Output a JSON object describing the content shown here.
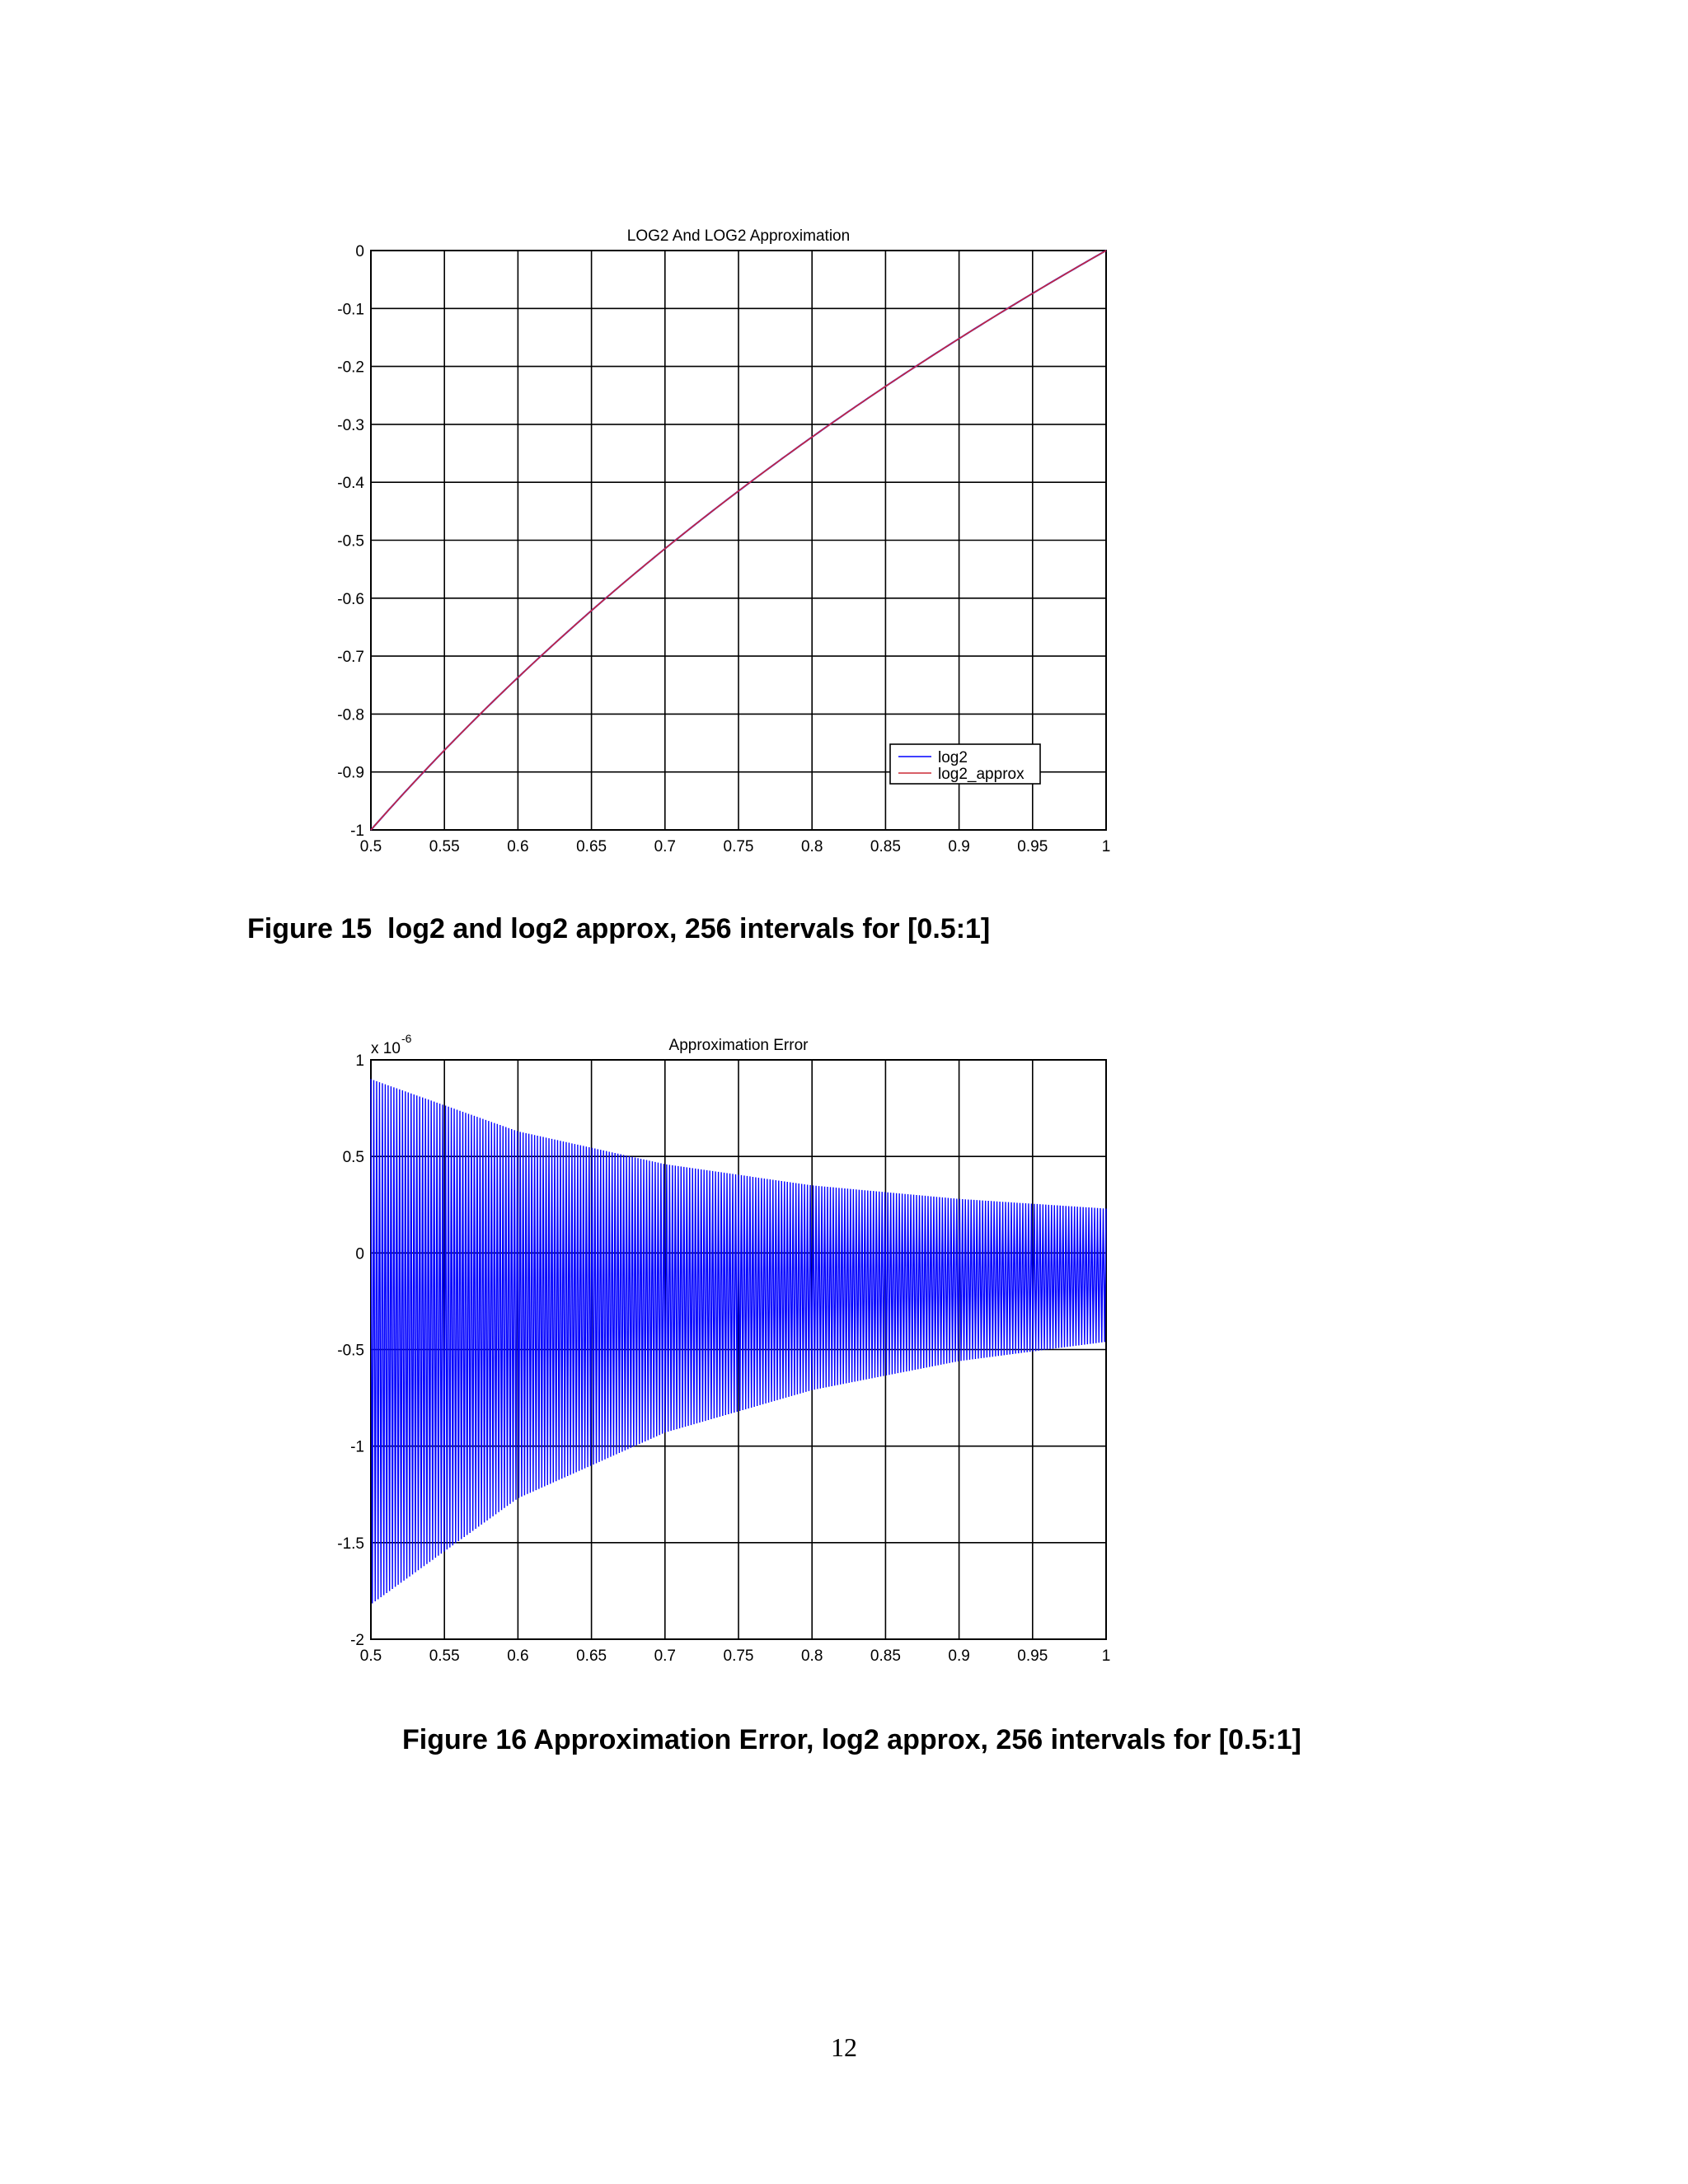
{
  "figures": [
    {
      "caption": "Figure 15  log2 and log2 approx, 256 intervals for [0.5:1]"
    },
    {
      "caption": "Figure 16 Approximation Error, log2 approx, 256 intervals for [0.5:1]"
    }
  ],
  "page_number": "12",
  "chart_data": [
    {
      "type": "line",
      "title": "LOG2 And LOG2 Approximation",
      "xlabel": "",
      "ylabel": "",
      "xlim": [
        0.5,
        1
      ],
      "ylim": [
        -1,
        0
      ],
      "xticks": [
        "0.5",
        "0.55",
        "0.6",
        "0.65",
        "0.7",
        "0.75",
        "0.8",
        "0.85",
        "0.9",
        "0.95",
        "1"
      ],
      "yticks": [
        "0",
        "-0.1",
        "-0.2",
        "-0.3",
        "-0.4",
        "-0.5",
        "-0.6",
        "-0.7",
        "-0.8",
        "-0.9",
        "-1"
      ],
      "grid": true,
      "legend": "lower-right",
      "function": "log2(x)",
      "x": [
        0.5,
        0.55,
        0.6,
        0.65,
        0.7,
        0.75,
        0.8,
        0.85,
        0.9,
        0.95,
        1
      ],
      "series": [
        {
          "name": "log2",
          "color": "#0000ff",
          "values": [
            -1,
            -0.8625,
            -0.737,
            -0.6215,
            -0.5146,
            -0.415,
            -0.3219,
            -0.2345,
            -0.152,
            -0.074,
            0
          ]
        },
        {
          "name": "log2_approx",
          "color": "#cc2a36",
          "values": [
            -1,
            -0.8625,
            -0.737,
            -0.6215,
            -0.5146,
            -0.415,
            -0.3219,
            -0.2345,
            -0.152,
            -0.074,
            0
          ]
        }
      ]
    },
    {
      "type": "line",
      "title": "Approximation  Error",
      "xlabel": "",
      "ylabel": "",
      "y_multiplier": "x 10",
      "y_multiplier_exponent": "-6",
      "xlim": [
        0.5,
        1
      ],
      "ylim": [
        -2,
        1
      ],
      "xticks": [
        "0.5",
        "0.55",
        "0.6",
        "0.65",
        "0.7",
        "0.75",
        "0.8",
        "0.85",
        "0.9",
        "0.95",
        "1"
      ],
      "yticks": [
        "1",
        "0.5",
        "0",
        "-0.5",
        "-1",
        "-1.5",
        "-2"
      ],
      "grid": true,
      "intervals": 256,
      "series": [
        {
          "color": "#0000ff",
          "upper_envelope": {
            "x": [
              0.5,
              0.6,
              0.7,
              0.8,
              0.9,
              1.0
            ],
            "values": [
              0.9,
              0.63,
              0.46,
              0.35,
              0.28,
              0.23
            ]
          },
          "lower_envelope": {
            "x": [
              0.5,
              0.6,
              0.7,
              0.8,
              0.9,
              1.0
            ],
            "values": [
              -1.82,
              -1.27,
              -0.93,
              -0.71,
              -0.56,
              -0.46
            ]
          }
        }
      ]
    }
  ]
}
